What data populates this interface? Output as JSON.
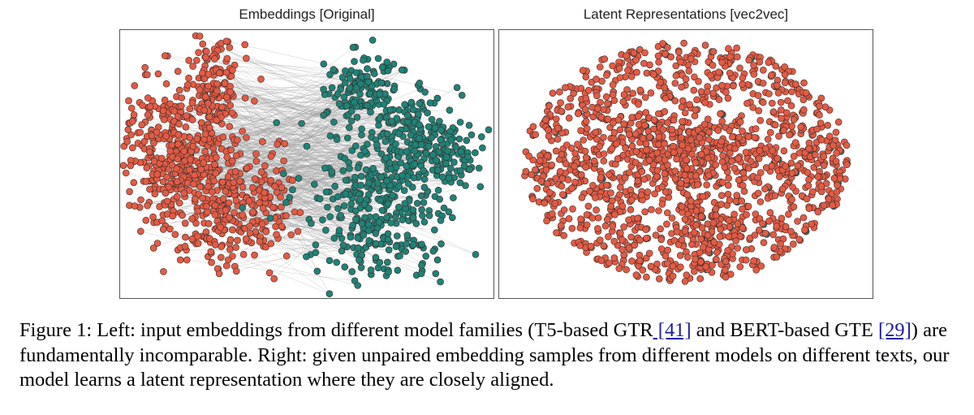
{
  "figure": {
    "left_title": "Embeddings  [Original]",
    "right_title": "Latent Representations  [vec2vec]",
    "colors": {
      "red": "#e25b45",
      "teal": "#1f8278",
      "link_line": "#9a9a9a",
      "edge": "#3a2a26"
    }
  },
  "caption": {
    "label": "Figure 1:",
    "text_1": " Left: input embeddings from different model families (T5-based GTR",
    "ref_1": " [41]",
    "text_2": " and BERT-based GTE ",
    "ref_2": "[29]",
    "text_3": ") are fundamentally incomparable. Right: given unpaired embedding samples from different models on different texts, our model learns a latent representation where they are closely aligned."
  }
}
